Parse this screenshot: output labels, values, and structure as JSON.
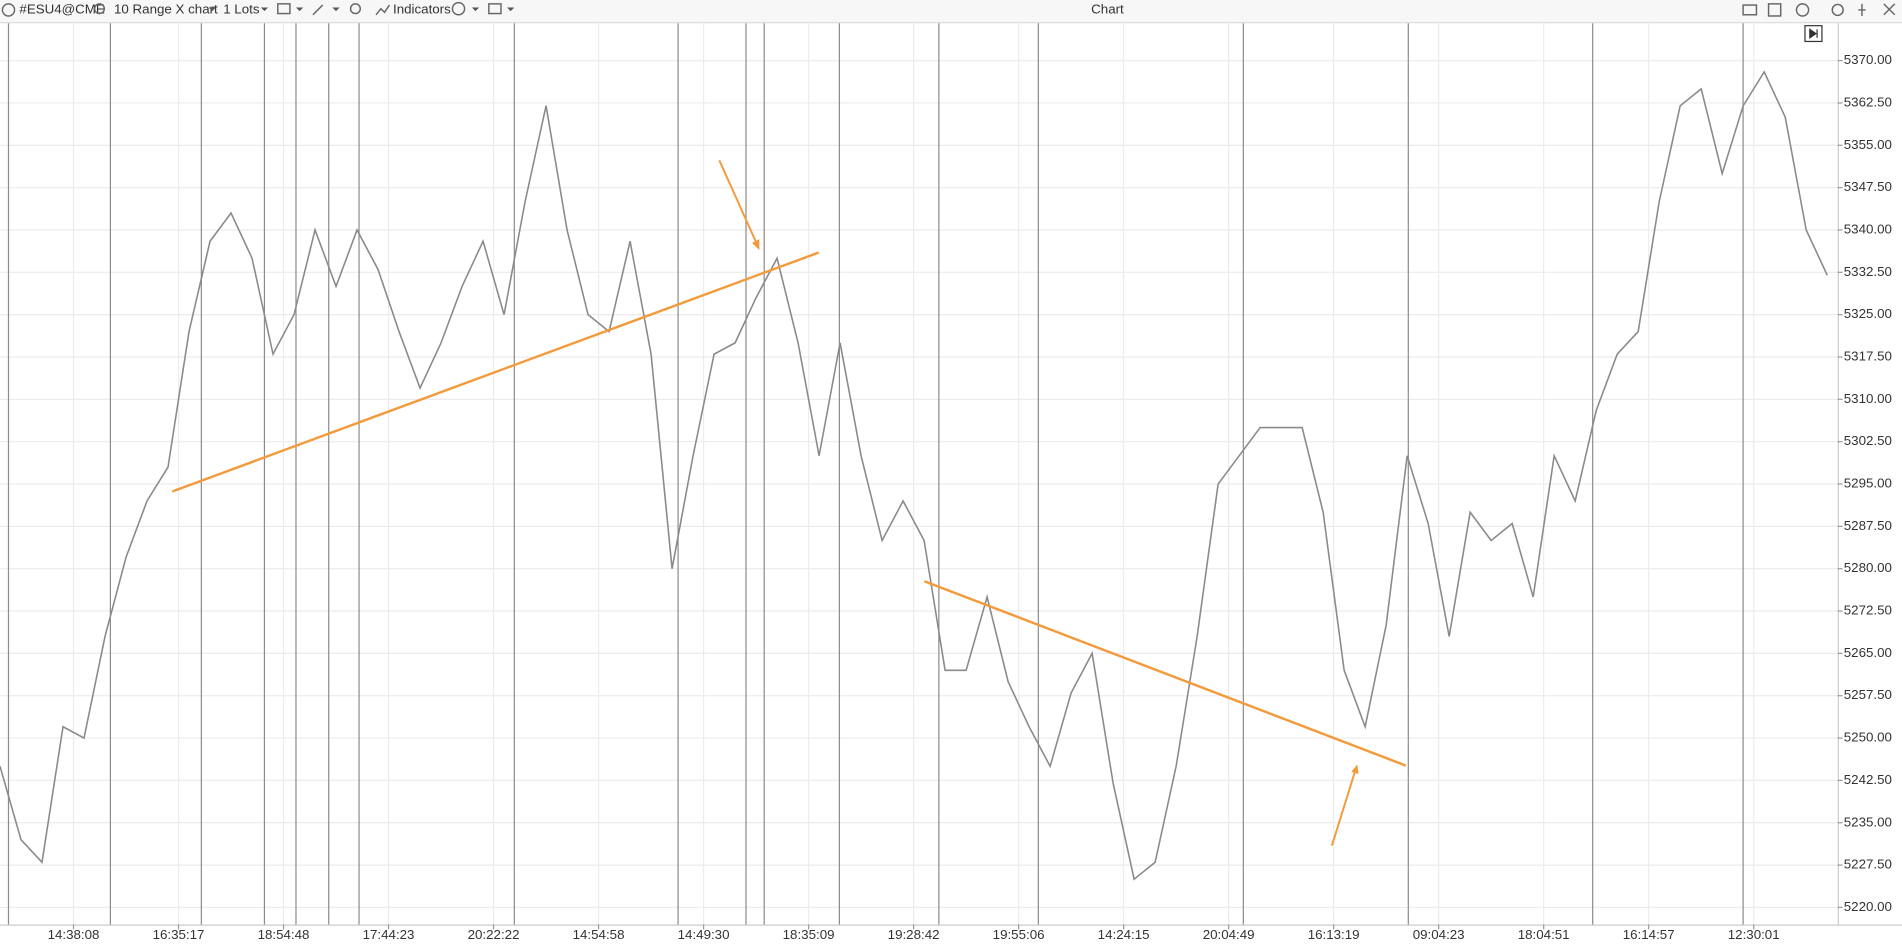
{
  "toolbar": {
    "symbol": "#ESU4@CME",
    "chart_type": "10 Range X chart",
    "lots": "1 Lots",
    "indicators": "Indicators",
    "window_title": "Chart"
  },
  "chart_data": {
    "type": "line",
    "x": [
      0,
      2,
      4,
      6,
      8,
      10,
      12,
      14,
      16,
      18,
      20,
      22,
      24,
      26,
      28,
      30,
      32,
      34,
      36,
      38,
      40,
      42,
      44,
      46,
      48,
      50,
      52,
      54,
      56,
      58,
      60,
      62,
      64,
      66,
      68,
      70,
      72,
      74,
      76,
      78,
      80,
      82,
      84,
      86,
      88,
      90,
      92,
      94,
      96,
      98,
      100,
      102,
      104,
      106,
      108,
      110,
      112,
      114,
      116,
      118,
      120,
      122,
      124,
      126,
      128,
      130,
      132,
      134,
      136,
      138,
      140,
      142,
      144,
      146,
      148,
      150,
      152,
      154,
      156,
      158,
      160,
      162,
      164,
      166,
      168,
      170,
      172,
      174
    ],
    "series": [
      {
        "color": "#8a8a8a",
        "values": [
          5245,
          5232,
          5228,
          5252,
          5250,
          5268,
          5282,
          5292,
          5298,
          5322,
          5338,
          5343,
          5335,
          5318,
          5325,
          5340,
          5330,
          5340,
          5333,
          5322,
          5312,
          5320,
          5330,
          5338,
          5325,
          5345,
          5362,
          5340,
          5325,
          5322,
          5338,
          5318,
          5280,
          5300,
          5318,
          5320,
          5328,
          5335,
          5320,
          5300,
          5320,
          5300,
          5285,
          5292,
          5285,
          5262,
          5262,
          5275,
          5260,
          5252,
          5245,
          5258,
          5265,
          5242,
          5225,
          5228,
          5245,
          5268,
          5295,
          5300,
          5305,
          5305,
          5305,
          5290,
          5262,
          5252,
          5270,
          5300,
          5288,
          5268,
          5290,
          5285,
          5288,
          5275,
          5300,
          5292,
          5308,
          5318,
          5322,
          5345,
          5362,
          5365,
          5350,
          5362,
          5368,
          5360,
          5340,
          5332
        ]
      }
    ],
    "xlim": [
      0,
      175
    ],
    "xticks": [
      {
        "value": 7,
        "label": "14:38:08"
      },
      {
        "value": 17,
        "label": "16:35:17"
      },
      {
        "value": 27,
        "label": "18:54:48"
      },
      {
        "value": 37,
        "label": "17:44:23"
      },
      {
        "value": 47,
        "label": "20:22:22"
      },
      {
        "value": 57,
        "label": "14:54:58"
      },
      {
        "value": 67,
        "label": "14:49:30"
      },
      {
        "value": 77,
        "label": "18:35:09"
      },
      {
        "value": 87,
        "label": "19:28:42"
      },
      {
        "value": 97,
        "label": "19:55:06"
      },
      {
        "value": 107,
        "label": "14:24:15"
      },
      {
        "value": 117,
        "label": "20:04:49"
      },
      {
        "value": 127,
        "label": "16:13:19"
      },
      {
        "value": 137,
        "label": "09:04:23"
      },
      {
        "value": 147,
        "label": "18:04:51"
      },
      {
        "value": 157,
        "label": "16:14:57"
      },
      {
        "value": 167,
        "label": "12:30:01"
      }
    ],
    "ylim": [
      5217.4,
      5376.4
    ],
    "yticks": [
      {
        "value": 5220,
        "label": "5220.00"
      },
      {
        "value": 5227.5,
        "label": "5227.50"
      },
      {
        "value": 5235,
        "label": "5235.00"
      },
      {
        "value": 5242.5,
        "label": "5242.50"
      },
      {
        "value": 5250,
        "label": "5250.00"
      },
      {
        "value": 5257.5,
        "label": "5257.50"
      },
      {
        "value": 5265,
        "label": "5265.00"
      },
      {
        "value": 5272.5,
        "label": "5272.50"
      },
      {
        "value": 5280,
        "label": "5280.00"
      },
      {
        "value": 5287.5,
        "label": "5287.50"
      },
      {
        "value": 5295,
        "label": "5295.00"
      },
      {
        "value": 5302.5,
        "label": "5302.50"
      },
      {
        "value": 5310,
        "label": "5310.00"
      },
      {
        "value": 5317.5,
        "label": "5317.50"
      },
      {
        "value": 5325,
        "label": "5325.00"
      },
      {
        "value": 5332.5,
        "label": "5332.50"
      },
      {
        "value": 5340,
        "label": "5340.00"
      },
      {
        "value": 5347.5,
        "label": "5347.50"
      },
      {
        "value": 5355,
        "label": "5355.00"
      },
      {
        "value": 5362.5,
        "label": "5362.50"
      },
      {
        "value": 5370,
        "label": "5370.00"
      }
    ],
    "grid": true
  }
}
